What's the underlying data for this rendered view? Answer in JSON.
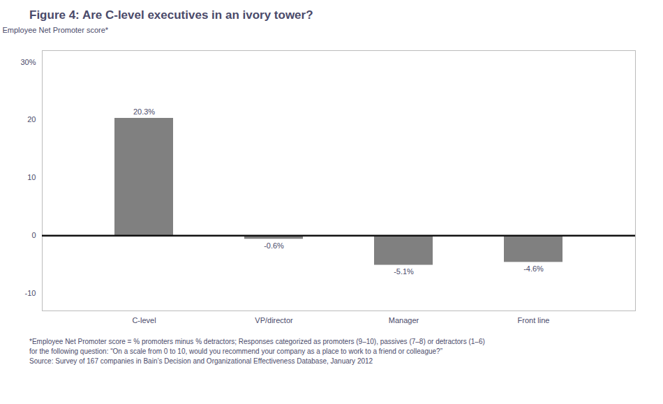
{
  "chart_data": {
    "type": "bar",
    "title": "Figure 4: Are C-level executives in an ivory tower?",
    "y_label": "Employee Net Promoter score*",
    "categories": [
      "C-level",
      "VP/director",
      "Manager",
      "Front line"
    ],
    "values": [
      20.3,
      -0.6,
      -5.1,
      -4.6
    ],
    "value_labels": [
      "20.3%",
      "-0.6%",
      "-5.1%",
      "-4.6%"
    ],
    "data_labels": true,
    "color": "#808080",
    "ylim": [
      -13,
      32
    ],
    "yticks": [
      -10,
      0,
      10,
      20,
      {
        "value": 30,
        "label": "30%"
      }
    ],
    "grid": false,
    "footnotes": [
      "*Employee Net Promoter score = % promoters minus % detractors; Responses categorized as promoters (9–10), passives (7–8) or detractors (1–6)",
      "for the following question: “On a scale from 0 to 10, would you recommend your company as a place to work to a friend or colleague?”",
      "Source: Survey of 167 companies in Bain’s Decision and Organizational Effectiveness Database, January 2012"
    ]
  }
}
